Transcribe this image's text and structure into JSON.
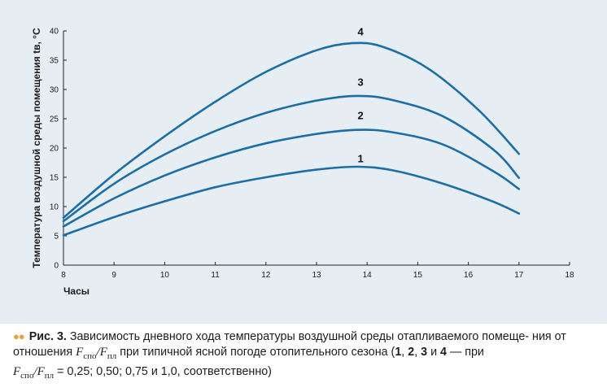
{
  "chart_data": {
    "type": "line",
    "xlabel": "Часы",
    "ylabel": "Температура воздушной среды помещения tв, °C",
    "xlim": [
      8,
      18
    ],
    "ylim": [
      0,
      40
    ],
    "x_ticks": [
      "8",
      "9",
      "10",
      "11",
      "12",
      "13",
      "14",
      "15",
      "16",
      "17",
      "18"
    ],
    "y_ticks": [
      "0",
      "5",
      "10",
      "15",
      "20",
      "25",
      "30",
      "35",
      "40"
    ],
    "grid": false,
    "line_color": "#1b6fa8",
    "series": [
      {
        "name": "1",
        "x": [
          8,
          9,
          10,
          11,
          12,
          13,
          13.8,
          14.5,
          15.5,
          16.5,
          17
        ],
        "y": [
          5.1,
          8.2,
          10.9,
          13.3,
          15.0,
          16.3,
          16.8,
          16.2,
          13.9,
          10.8,
          8.8
        ]
      },
      {
        "name": "2",
        "x": [
          8,
          9,
          10,
          11,
          12,
          13,
          13.8,
          14.5,
          15.5,
          16.5,
          17
        ],
        "y": [
          6.6,
          11.4,
          15.3,
          18.4,
          20.8,
          22.4,
          23.1,
          22.7,
          20.6,
          16.0,
          13.0
        ]
      },
      {
        "name": "3",
        "x": [
          8,
          9,
          10,
          11,
          12,
          13,
          13.8,
          14.5,
          15.5,
          16.5,
          17
        ],
        "y": [
          7.5,
          13.9,
          18.9,
          22.9,
          26.0,
          28.1,
          28.9,
          28.2,
          25.4,
          19.7,
          14.9
        ]
      },
      {
        "name": "4",
        "x": [
          8,
          9,
          10,
          11,
          12,
          13,
          13.7,
          14.3,
          15.2,
          16.2,
          17
        ],
        "y": [
          8.1,
          15.5,
          22.0,
          27.9,
          33.0,
          36.7,
          37.9,
          37.3,
          33.6,
          26.5,
          19.0
        ]
      }
    ],
    "curve_labels": [
      {
        "text": "1",
        "x": 13.87,
        "y": 18.1
      },
      {
        "text": "2",
        "x": 13.87,
        "y": 25.5
      },
      {
        "text": "3",
        "x": 13.87,
        "y": 31.2
      },
      {
        "text": "4",
        "x": 13.87,
        "y": 39.8
      }
    ]
  },
  "caption": {
    "marker": "●●",
    "fig_label": "Рис. 3.",
    "text_1": " Зависимость дневного хода температуры воздушной среды отапливаемого помеще- ния от отношения ",
    "f1": "F",
    "f1_sub": "спо",
    "slash": "/",
    "f2": "F",
    "f2_sub": "пл",
    "text_2": " при типичной ясной погоде отопительного сезона (",
    "n1": "1",
    "c1": ", ",
    "n2": "2",
    "c2": ", ",
    "n3": "3",
    "c3": " и ",
    "n4": "4",
    "text_3": " — при ",
    "f3": "F",
    "f3_sub": "спо",
    "slash2": "/",
    "f4": "F",
    "f4_sub": "пл",
    "text_4": " = 0,25; 0,50; 0,75 и 1,0, соответственно)"
  }
}
